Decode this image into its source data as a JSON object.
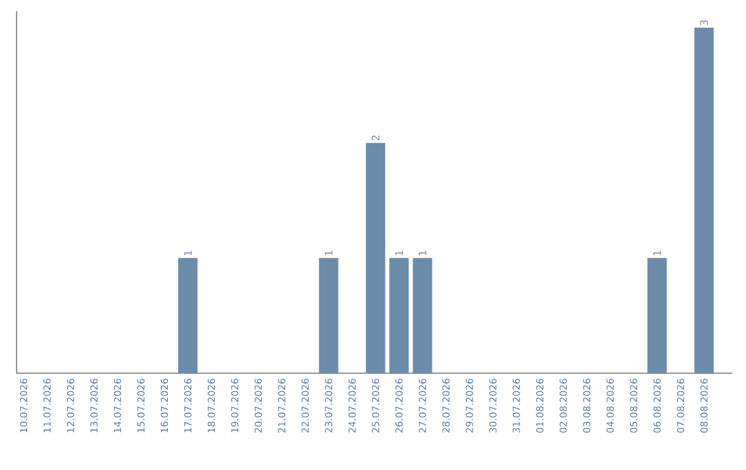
{
  "chart_data": {
    "type": "bar",
    "categories": [
      "10.07.2026",
      "11.07.2026",
      "12.07.2026",
      "13.07.2026",
      "14.07.2026",
      "15.07.2026",
      "16.07.2026",
      "17.07.2026",
      "18.07.2026",
      "19.07.2026",
      "20.07.2026",
      "21.07.2026",
      "22.07.2026",
      "23.07.2026",
      "24.07.2026",
      "25.07.2026",
      "26.07.2026",
      "27.07.2026",
      "28.07.2026",
      "29.07.2026",
      "30.07.2026",
      "31.07.2026",
      "01.08.2026",
      "02.08.2026",
      "03.08.2026",
      "04.08.2026",
      "05.08.2026",
      "06.08.2026",
      "07.08.2026",
      "08.08.2026"
    ],
    "values": [
      0,
      0,
      0,
      0,
      0,
      0,
      0,
      1,
      0,
      0,
      0,
      0,
      0,
      1,
      0,
      2,
      1,
      1,
      0,
      0,
      0,
      0,
      0,
      0,
      0,
      0,
      0,
      1,
      0,
      3
    ],
    "value_labels": [
      null,
      null,
      null,
      null,
      null,
      null,
      null,
      "1",
      null,
      null,
      null,
      null,
      null,
      "1",
      null,
      "2",
      "1",
      "1",
      null,
      null,
      null,
      null,
      null,
      null,
      null,
      null,
      null,
      "1",
      null,
      "3"
    ],
    "color": "#6b8cab",
    "grid": false,
    "tick_labels": "x"
  }
}
